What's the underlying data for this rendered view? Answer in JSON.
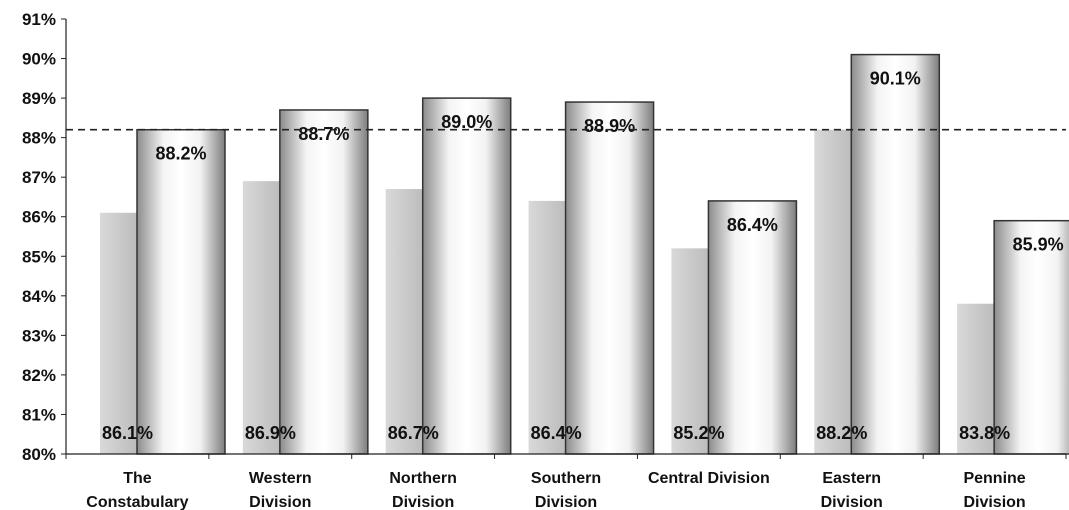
{
  "chart_data": {
    "type": "bar",
    "categories": [
      [
        "The",
        "Constabulary"
      ],
      [
        "Western",
        "Division"
      ],
      [
        "Northern",
        "Division"
      ],
      [
        "Southern",
        "Division"
      ],
      [
        "Central Division"
      ],
      [
        "Eastern",
        "Division"
      ],
      [
        "Pennine",
        "Division"
      ]
    ],
    "series": [
      {
        "values": [
          86.1,
          86.9,
          86.7,
          86.4,
          85.2,
          88.2,
          83.8
        ],
        "labels": [
          "86.1%",
          "86.9%",
          "86.7%",
          "86.4%",
          "85.2%",
          "88.2%",
          "83.8%"
        ],
        "color": "#c9c9c9"
      },
      {
        "values": [
          88.2,
          88.7,
          89.0,
          88.9,
          86.4,
          90.1,
          85.9
        ],
        "labels": [
          "88.2%",
          "88.7%",
          "89.0%",
          "88.9%",
          "86.4%",
          "90.1%",
          "85.9%"
        ],
        "color": "#a8a8a8"
      }
    ],
    "reference_line": {
      "value": 88.2,
      "style": "dashed"
    },
    "ylim": [
      80,
      91
    ],
    "ytick_step": 1,
    "ytick_format": "percent",
    "title": "",
    "xlabel": "",
    "ylabel": "",
    "grid": false,
    "legend": "none"
  }
}
